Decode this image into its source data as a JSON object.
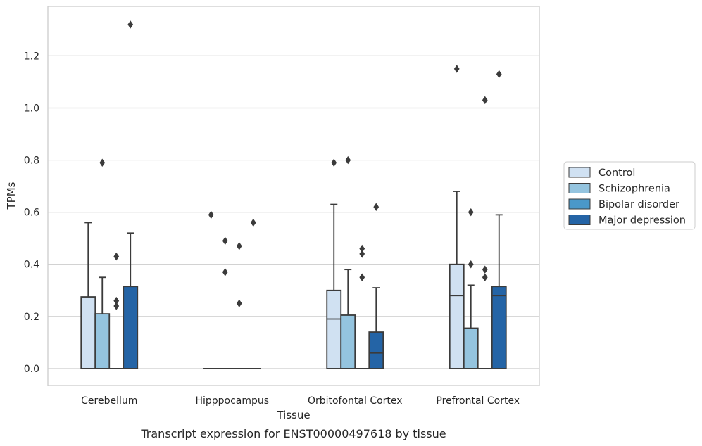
{
  "caption": "Transcript expression for ENST00000497618 by tissue",
  "chart_data": {
    "type": "box",
    "xlabel": "Tissue",
    "ylabel": "TPMs",
    "ylim": [
      -0.065,
      1.39
    ],
    "yticks": [
      0.0,
      0.2,
      0.4,
      0.6,
      0.8,
      1.0,
      1.2
    ],
    "ytick_labels": [
      "0.0",
      "0.2",
      "0.4",
      "0.6",
      "0.8",
      "1.0",
      "1.2"
    ],
    "grid": "horizontal",
    "legend_position": "right",
    "categories": [
      "Cerebellum",
      "Hipppocampus",
      "Orbitofontal Cortex",
      "Prefrontal Cortex"
    ],
    "series": [
      {
        "name": "Control",
        "color": "#d0e1f2",
        "boxes": [
          {
            "q1": 0.0,
            "median": 0.0,
            "q3": 0.275,
            "whisker_low": 0.0,
            "whisker_high": 0.56,
            "outliers": []
          },
          {
            "q1": 0.0,
            "median": 0.0,
            "q3": 0.0,
            "whisker_low": 0.0,
            "whisker_high": 0.0,
            "outliers": [
              0.59
            ]
          },
          {
            "q1": 0.0,
            "median": 0.19,
            "q3": 0.3,
            "whisker_low": 0.0,
            "whisker_high": 0.63,
            "outliers": [
              0.79
            ]
          },
          {
            "q1": 0.0,
            "median": 0.28,
            "q3": 0.4,
            "whisker_low": 0.0,
            "whisker_high": 0.68,
            "outliers": [
              1.15
            ]
          }
        ]
      },
      {
        "name": "Schizophrenia",
        "color": "#94c4df",
        "boxes": [
          {
            "q1": 0.0,
            "median": 0.0,
            "q3": 0.21,
            "whisker_low": 0.0,
            "whisker_high": 0.35,
            "outliers": [
              0.79
            ]
          },
          {
            "q1": 0.0,
            "median": 0.0,
            "q3": 0.0,
            "whisker_low": 0.0,
            "whisker_high": 0.0,
            "outliers": [
              0.49,
              0.37
            ]
          },
          {
            "q1": 0.0,
            "median": 0.0,
            "q3": 0.205,
            "whisker_low": 0.0,
            "whisker_high": 0.38,
            "outliers": [
              0.8
            ]
          },
          {
            "q1": 0.0,
            "median": 0.0,
            "q3": 0.155,
            "whisker_low": 0.0,
            "whisker_high": 0.32,
            "outliers": [
              0.6,
              0.4
            ]
          }
        ]
      },
      {
        "name": "Bipolar disorder",
        "color": "#4a98c9",
        "boxes": [
          {
            "q1": 0.0,
            "median": 0.0,
            "q3": 0.0,
            "whisker_low": 0.0,
            "whisker_high": 0.0,
            "outliers": [
              0.43,
              0.26,
              0.24
            ]
          },
          {
            "q1": 0.0,
            "median": 0.0,
            "q3": 0.0,
            "whisker_low": 0.0,
            "whisker_high": 0.0,
            "outliers": [
              0.47,
              0.25
            ]
          },
          {
            "q1": 0.0,
            "median": 0.0,
            "q3": 0.0,
            "whisker_low": 0.0,
            "whisker_high": 0.0,
            "outliers": [
              0.46,
              0.44,
              0.35
            ]
          },
          {
            "q1": 0.0,
            "median": 0.0,
            "q3": 0.0,
            "whisker_low": 0.0,
            "whisker_high": 0.0,
            "outliers": [
              1.03,
              0.38,
              0.35
            ]
          }
        ]
      },
      {
        "name": "Major depression",
        "color": "#2464a6",
        "boxes": [
          {
            "q1": 0.0,
            "median": 0.0,
            "q3": 0.315,
            "whisker_low": 0.0,
            "whisker_high": 0.52,
            "outliers": [
              1.32
            ]
          },
          {
            "q1": 0.0,
            "median": 0.0,
            "q3": 0.0,
            "whisker_low": 0.0,
            "whisker_high": 0.0,
            "outliers": [
              0.56
            ]
          },
          {
            "q1": 0.0,
            "median": 0.06,
            "q3": 0.14,
            "whisker_low": 0.0,
            "whisker_high": 0.31,
            "outliers": [
              0.62
            ]
          },
          {
            "q1": 0.0,
            "median": 0.28,
            "q3": 0.315,
            "whisker_low": 0.0,
            "whisker_high": 0.59,
            "outliers": [
              1.13
            ]
          }
        ]
      }
    ]
  }
}
